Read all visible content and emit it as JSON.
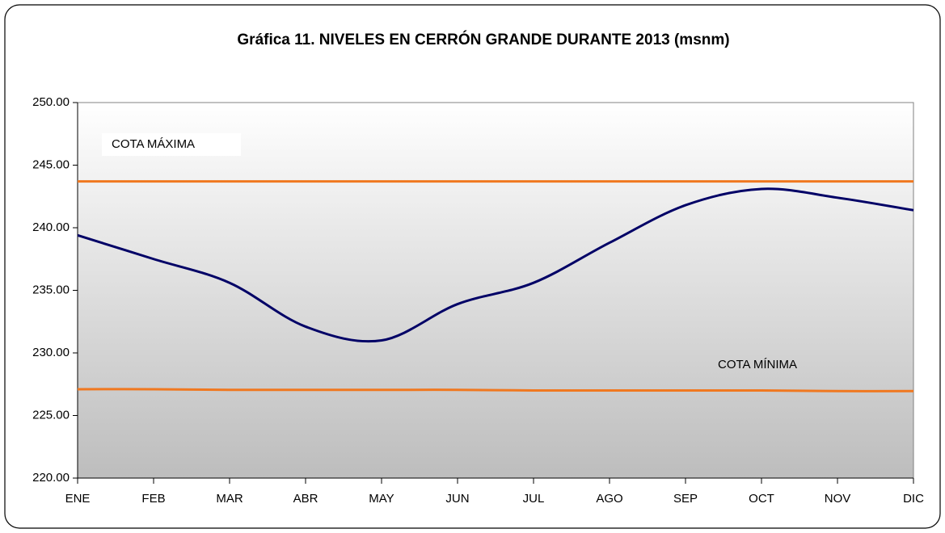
{
  "chart_data": {
    "type": "line",
    "title": "Gráfica 11. NIVELES EN CERRÓN GRANDE DURANTE 2013 (msnm)",
    "categories": [
      "ENE",
      "FEB",
      "MAR",
      "ABR",
      "MAY",
      "JUN",
      "JUL",
      "AGO",
      "SEP",
      "OCT",
      "NOV",
      "DIC"
    ],
    "series": [
      {
        "color": "#000066",
        "values": [
          239.4,
          237.5,
          235.6,
          232.1,
          231.0,
          233.9,
          235.6,
          238.8,
          241.8,
          243.1,
          242.4,
          241.4
        ]
      },
      {
        "name": "COTA MÁXIMA",
        "color": "#f07820",
        "values": [
          243.7,
          243.7,
          243.7,
          243.7,
          243.7,
          243.7,
          243.7,
          243.7,
          243.7,
          243.7,
          243.7,
          243.7
        ]
      },
      {
        "name": "COTA MÍNIMA",
        "color": "#f07820",
        "values": [
          227.1,
          227.1,
          227.05,
          227.05,
          227.05,
          227.05,
          227.0,
          227.0,
          227.0,
          227.0,
          226.95,
          226.95
        ]
      }
    ],
    "ylim": [
      220,
      250
    ],
    "yticks": [
      {
        "value": 220,
        "label": "220.00"
      },
      {
        "value": 225,
        "label": "225.00"
      },
      {
        "value": 230,
        "label": "230.00"
      },
      {
        "value": 235,
        "label": "235.00"
      },
      {
        "value": 240,
        "label": "240.00"
      },
      {
        "value": 245,
        "label": "245.00"
      },
      {
        "value": 250,
        "label": "250.00"
      }
    ]
  }
}
